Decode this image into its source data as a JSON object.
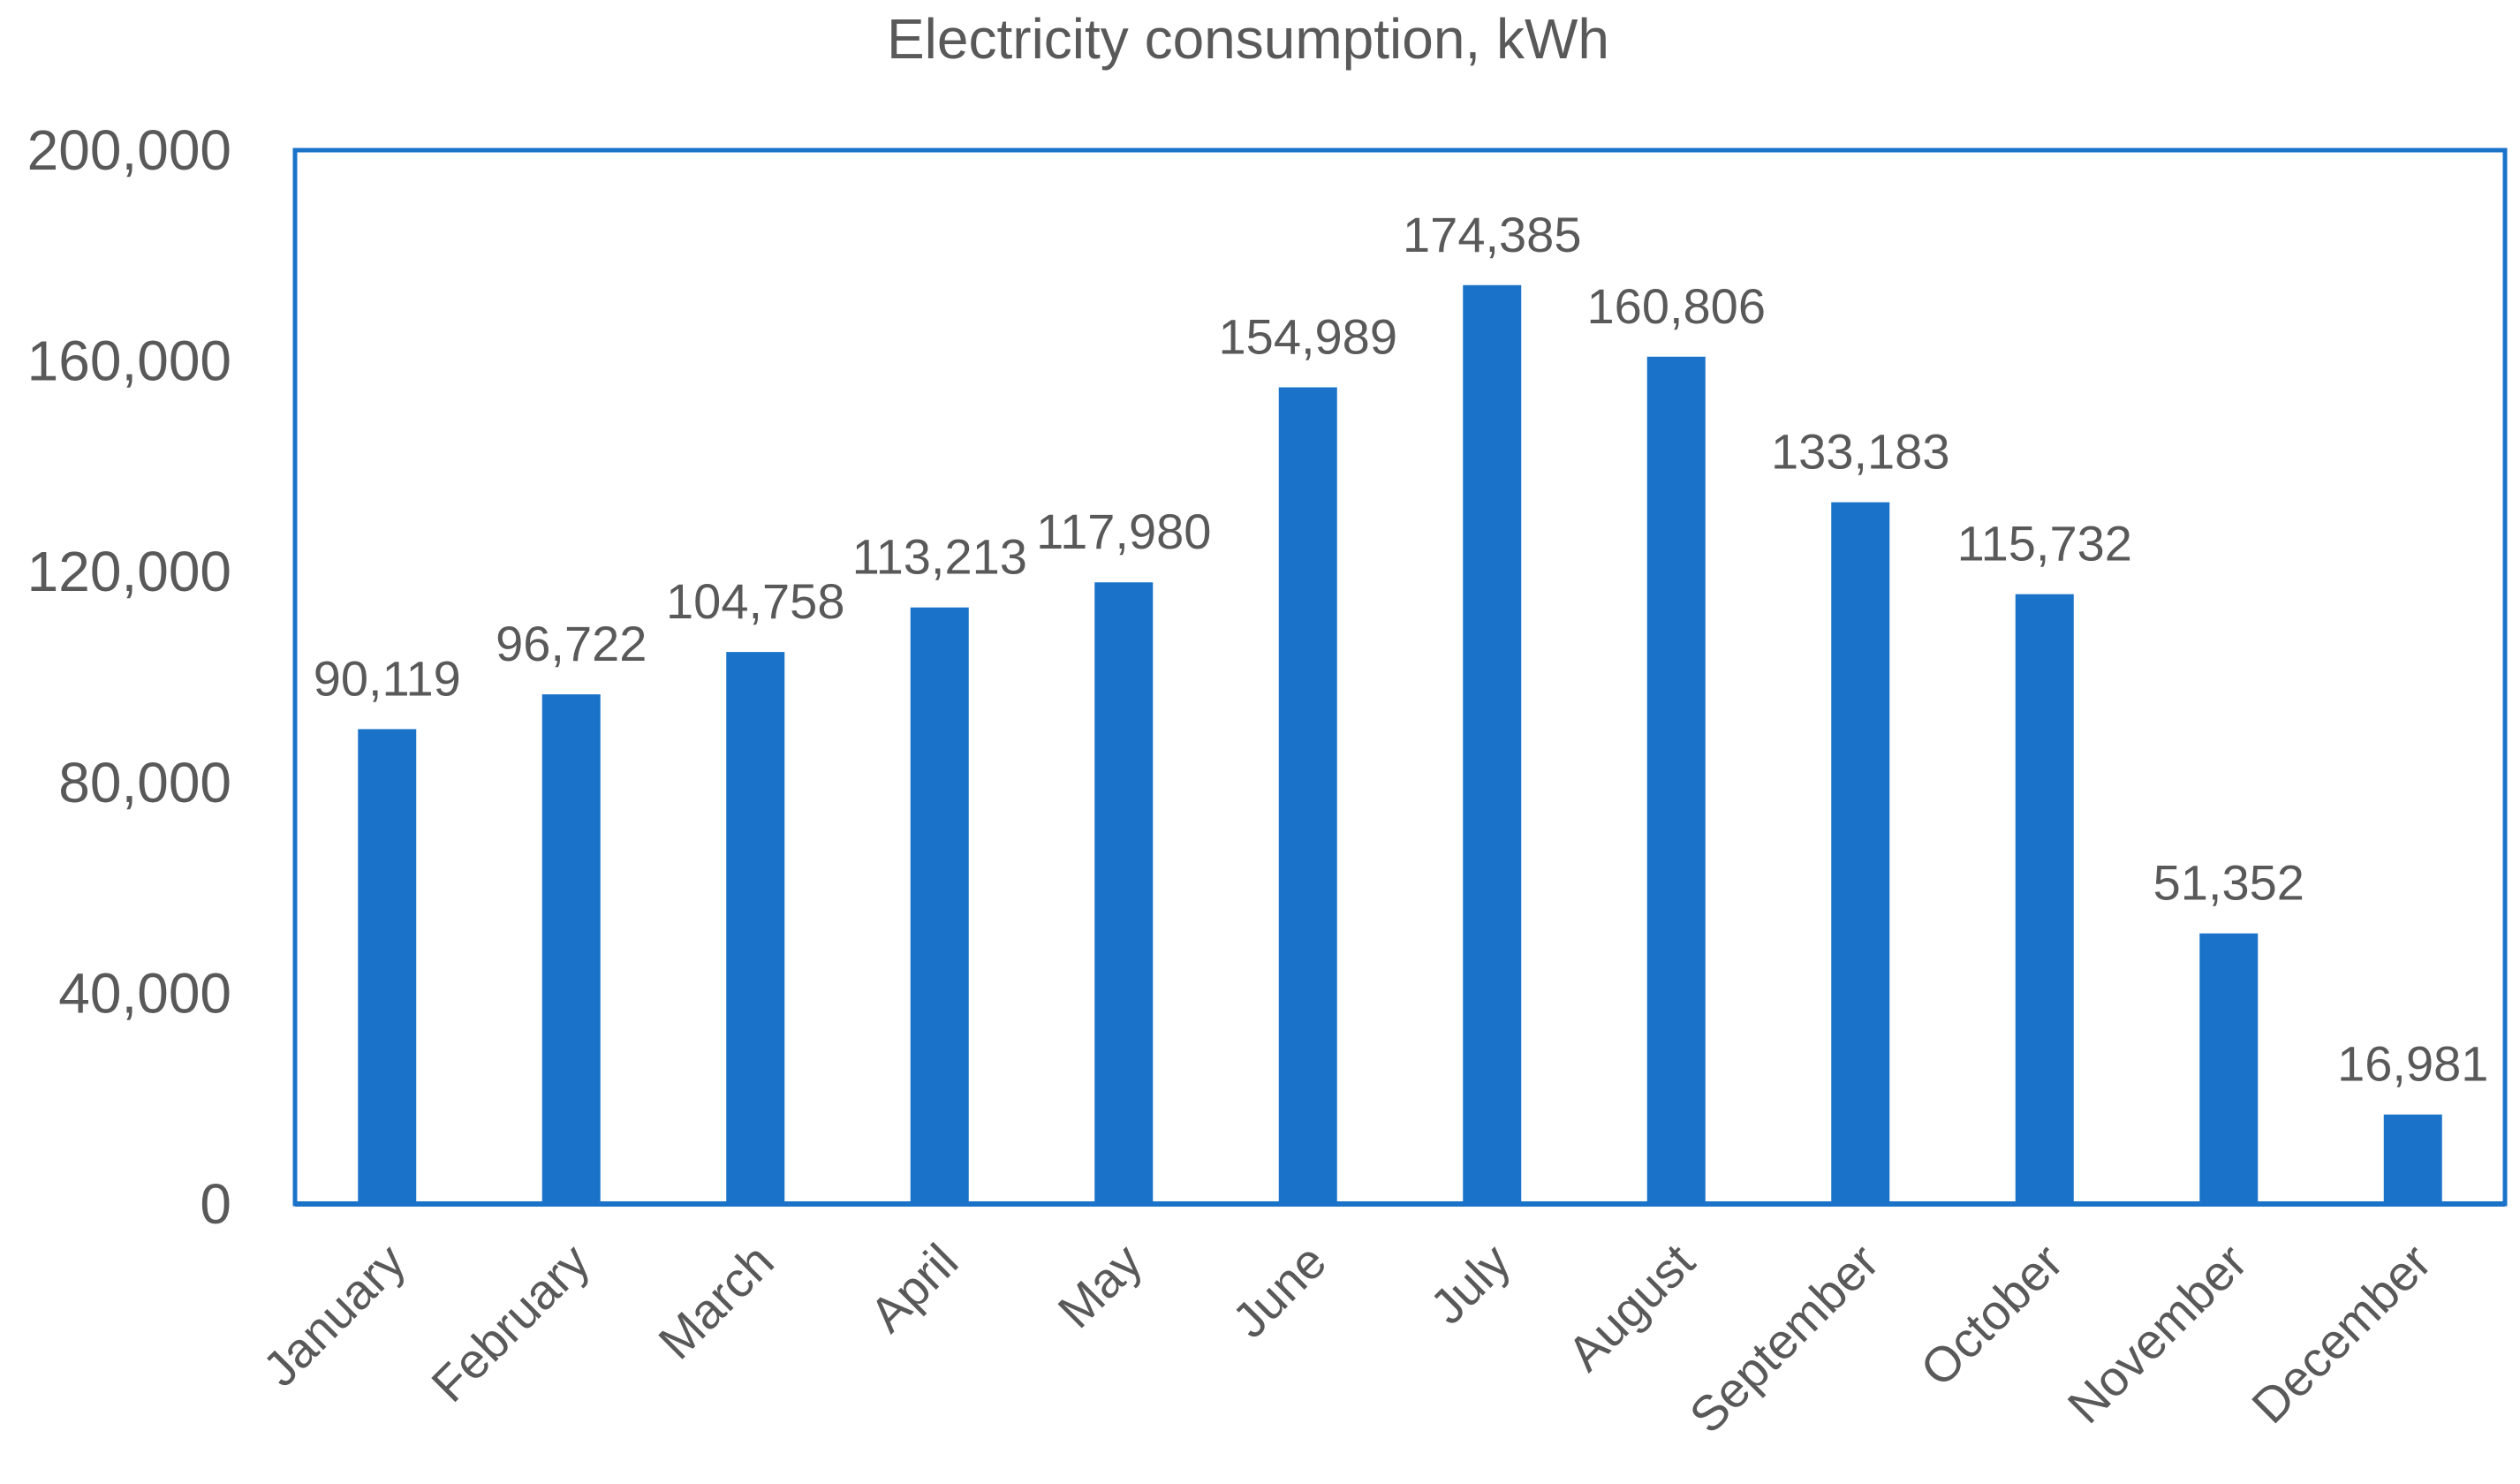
{
  "chart_data": {
    "type": "bar",
    "title": "Electricity consumption, kWh",
    "xlabel": "",
    "ylabel": "",
    "categories": [
      "January",
      "February",
      "March",
      "April",
      "May",
      "June",
      "July",
      "August",
      "September",
      "October",
      "November",
      "December"
    ],
    "values": [
      90119,
      96722,
      104758,
      113213,
      117980,
      154989,
      174385,
      160806,
      133183,
      115732,
      51352,
      16981
    ],
    "data_labels": [
      "90,119",
      "96,722",
      "104,758",
      "113,213",
      "117,980",
      "154,989",
      "174,385",
      "160,806",
      "133,183",
      "115,732",
      "51,352",
      "16,981"
    ],
    "ylim": [
      0,
      200000
    ],
    "yticks": [
      0,
      40000,
      80000,
      120000,
      160000,
      200000
    ],
    "ytick_labels": [
      "0",
      "40,000",
      "80,000",
      "120,000",
      "160,000",
      "200,000"
    ],
    "grid": false,
    "legend": "none",
    "bar_color": "#1a73c8",
    "frame_color": "#1a73c8",
    "text_color": "#595959"
  }
}
